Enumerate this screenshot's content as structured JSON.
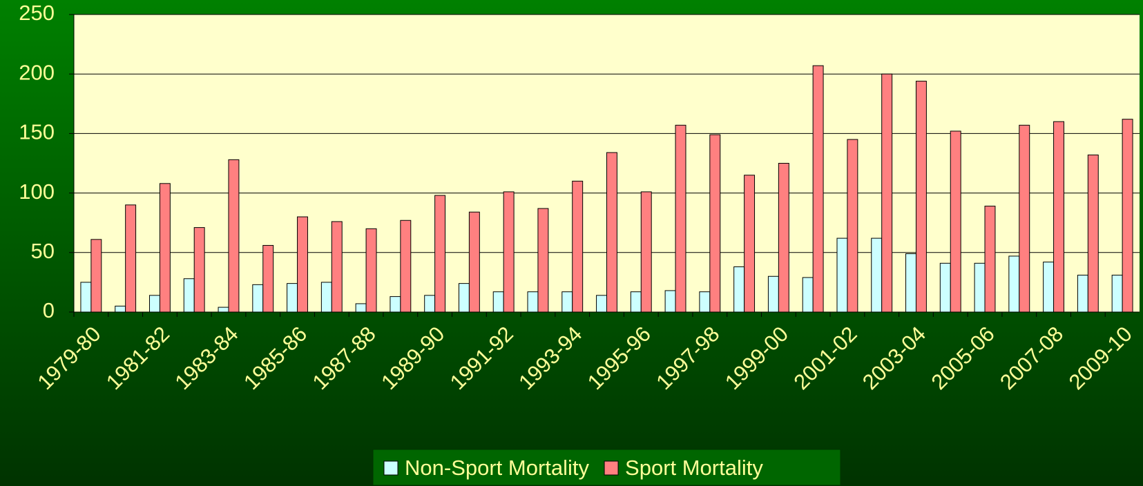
{
  "chart_data": {
    "type": "bar",
    "categories": [
      "1979-80",
      null,
      "1981-82",
      null,
      "1983-84",
      null,
      "1985-86",
      null,
      "1987-88",
      null,
      "1989-90",
      null,
      "1991-92",
      null,
      "1993-94",
      null,
      "1995-96",
      null,
      "1997-98",
      null,
      "1999-00",
      null,
      "2001-02",
      null,
      "2003-04",
      null,
      "2005-06",
      null,
      "2007-08",
      null,
      "2009-10"
    ],
    "series": [
      {
        "name": "Non-Sport Mortality",
        "color": "#ccffff",
        "values": [
          25,
          5,
          14,
          28,
          4,
          23,
          24,
          25,
          7,
          13,
          14,
          24,
          17,
          17,
          17,
          14,
          17,
          18,
          17,
          38,
          30,
          29,
          62,
          62,
          49,
          41,
          41,
          47,
          42,
          31,
          31
        ]
      },
      {
        "name": "Sport Mortality",
        "color": "#ff8080",
        "values": [
          61,
          90,
          108,
          71,
          128,
          56,
          80,
          76,
          70,
          77,
          98,
          84,
          101,
          87,
          110,
          134,
          101,
          157,
          149,
          115,
          125,
          207,
          145,
          200,
          194,
          152,
          89,
          157,
          160,
          132,
          162
        ]
      }
    ],
    "ylim": [
      0,
      250
    ],
    "yticks": [
      0,
      50,
      100,
      150,
      200,
      250
    ],
    "grid": true,
    "legend": "bottom"
  }
}
